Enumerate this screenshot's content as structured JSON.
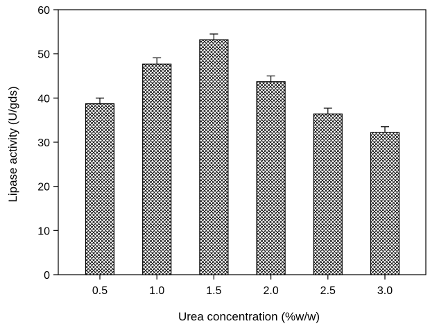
{
  "chart_data": {
    "type": "bar",
    "title": "",
    "xlabel": "Urea concentration (%w/w)",
    "ylabel": "Lipase activity (U/gds)",
    "categories": [
      "0.5",
      "1.0",
      "1.5",
      "2.0",
      "2.5",
      "3.0"
    ],
    "values": [
      38.7,
      47.7,
      53.2,
      43.7,
      36.4,
      32.2
    ],
    "errors": [
      1.3,
      1.4,
      1.3,
      1.3,
      1.3,
      1.3
    ],
    "ylim": [
      0,
      60
    ],
    "yticks": [
      "0",
      "10",
      "20",
      "30",
      "40",
      "50",
      "60"
    ],
    "grid": false,
    "legend": "none",
    "bar_pattern": "crosshatch",
    "colors": {
      "bar_fill": "#ffffff",
      "hatch": "#000000",
      "axis": "#000000"
    }
  }
}
